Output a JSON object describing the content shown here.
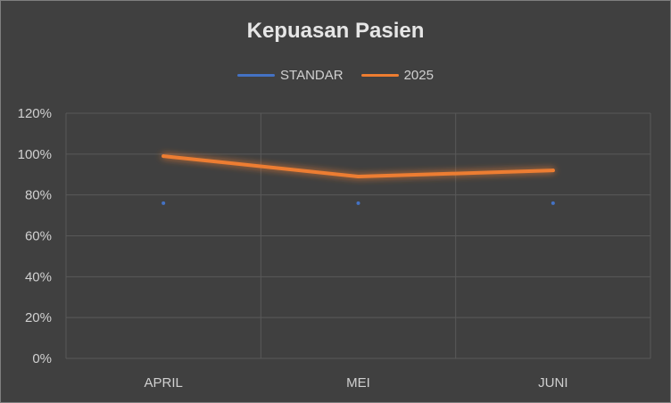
{
  "chart_data": {
    "type": "line",
    "title": "Kepuasan Pasien",
    "categories": [
      "APRIL",
      "MEI",
      "JUNI"
    ],
    "series": [
      {
        "name": "STANDAR",
        "values": [
          76,
          76,
          76
        ],
        "color": "#4472c4"
      },
      {
        "name": "2025",
        "values": [
          99,
          89,
          92
        ],
        "color": "#ed7d31"
      }
    ],
    "yticks": [
      "0%",
      "20%",
      "40%",
      "60%",
      "80%",
      "100%",
      "120%"
    ],
    "ylim": [
      0,
      120
    ],
    "grid": true,
    "legend": "top-center"
  }
}
